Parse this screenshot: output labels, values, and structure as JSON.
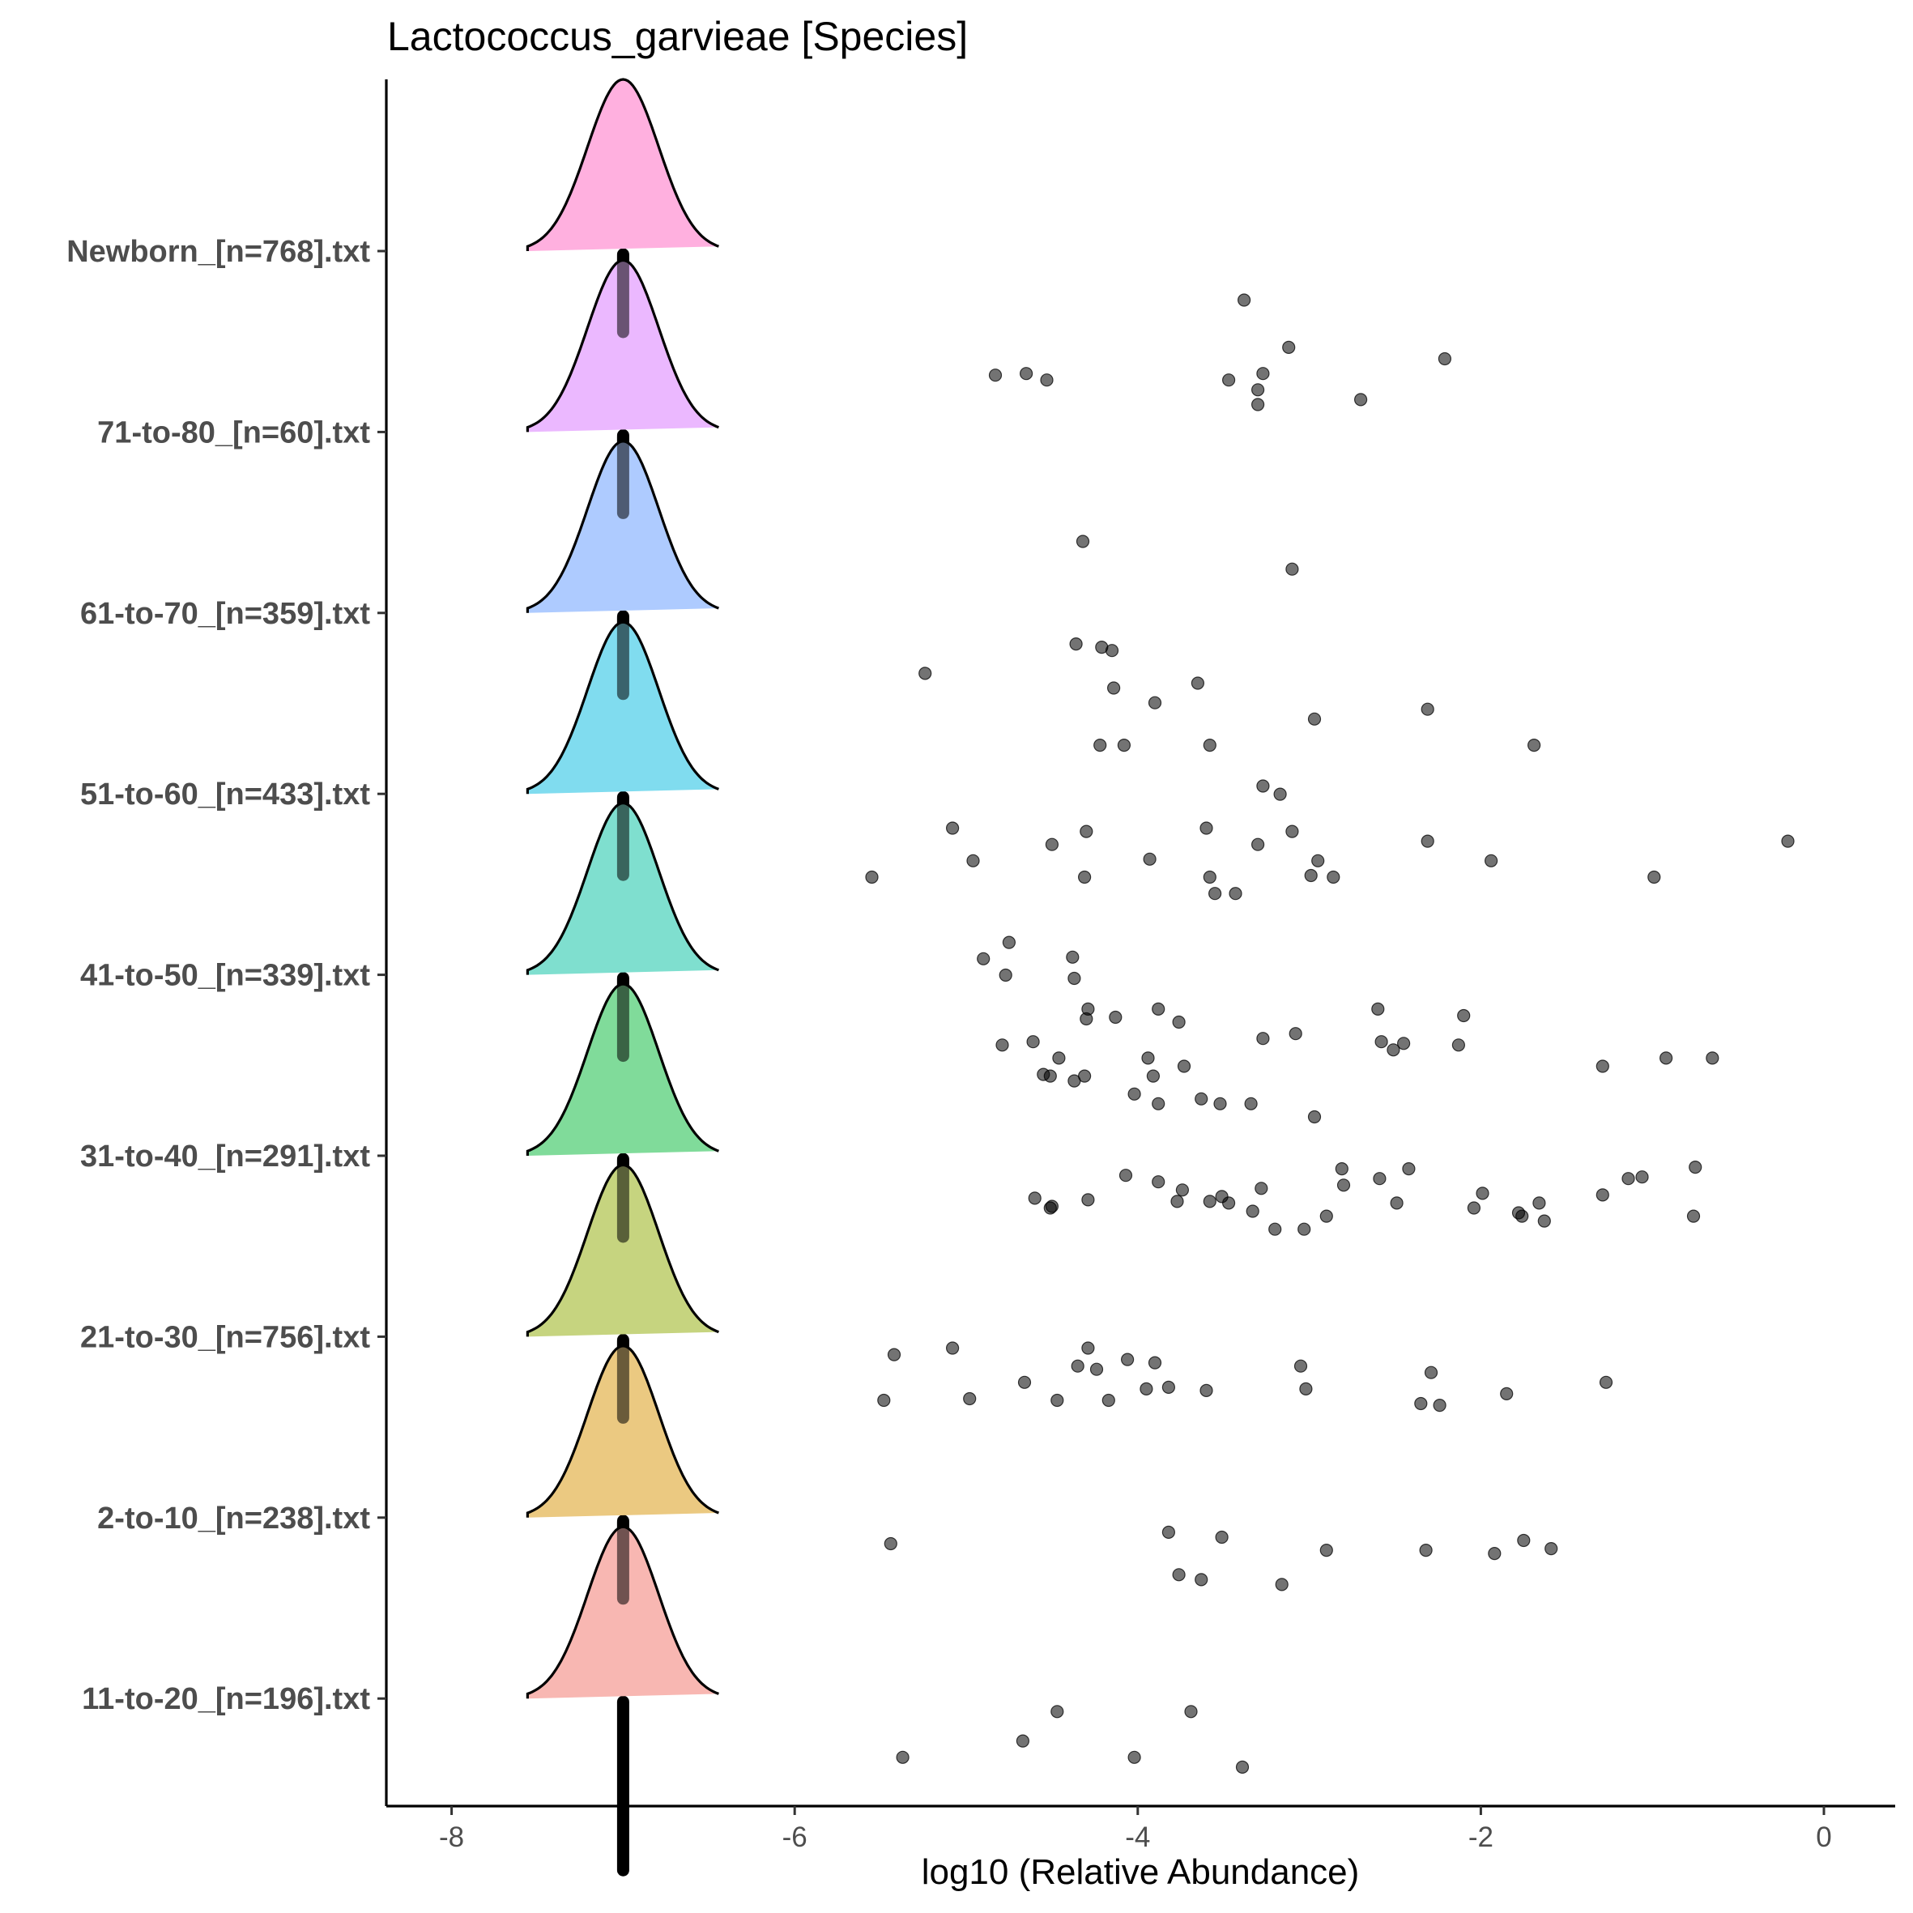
{
  "chart_data": {
    "type": "ridgeline",
    "title": "Lactococcus_garvieae [Species]",
    "xlabel": "log10 (Relative Abundance)",
    "xlim": [
      -8.4,
      0.8
    ],
    "xticks": [
      -8,
      -6,
      -4,
      -2,
      0
    ],
    "xtick_labels": [
      "-8",
      "-6",
      "-4",
      "-2",
      "0"
    ],
    "grid": false,
    "legend": "none",
    "baseline_value": -7,
    "groups": [
      {
        "label": "Newborn_[n=768].txt",
        "color": "#FFB0DF",
        "points": [
          [
            -4.83,
            0.75
          ],
          [
            -4.65,
            0.74
          ],
          [
            -4.53,
            0.78
          ],
          [
            -3.38,
            0.29
          ],
          [
            -3.47,
            0.78
          ],
          [
            -3.3,
            0.84
          ],
          [
            -3.27,
            0.74
          ],
          [
            -3.3,
            0.93
          ],
          [
            -3.12,
            0.58
          ],
          [
            -2.7,
            0.9
          ],
          [
            -2.21,
            0.65
          ]
        ]
      },
      {
        "label": "71-to-80_[n=60].txt",
        "color": "#EBB8FF",
        "points": [
          [
            -4.32,
            0.66
          ],
          [
            -3.1,
            0.83
          ]
        ]
      },
      {
        "label": "61-to-70_[n=359].txt",
        "color": "#AECBFF",
        "points": [
          [
            -5.24,
            0.36
          ],
          [
            -4.36,
            0.18
          ],
          [
            -4.21,
            0.2
          ],
          [
            -4.15,
            0.22
          ],
          [
            -4.14,
            0.45
          ],
          [
            -3.9,
            0.54
          ],
          [
            -3.65,
            0.42
          ],
          [
            -2.97,
            0.64
          ],
          [
            -2.31,
            0.58
          ],
          [
            -1.69,
            0.8
          ],
          [
            -4.22,
            0.8
          ],
          [
            -4.08,
            0.8
          ],
          [
            -3.58,
            0.8
          ],
          [
            -3.27,
            1.05
          ],
          [
            -3.17,
            1.1
          ]
        ]
      },
      {
        "label": "51-to-60_[n=433].txt",
        "color": "#80DCEF",
        "points": [
          [
            -4.75,
            0.9
          ],
          [
            -4.9,
            1.0
          ],
          [
            -4.77,
            1.1
          ],
          [
            -4.38,
            0.99
          ],
          [
            -4.37,
            1.12
          ],
          [
            -5.08,
            0.2
          ],
          [
            -4.3,
            0.22
          ],
          [
            -4.5,
            0.3
          ],
          [
            -3.6,
            0.2
          ],
          [
            -3.3,
            0.3
          ],
          [
            -3.1,
            0.22
          ],
          [
            -2.31,
            0.28
          ],
          [
            -2.95,
            0.4
          ],
          [
            -2.99,
            0.49
          ],
          [
            -3.93,
            0.39
          ],
          [
            -5.55,
            0.5
          ],
          [
            -4.96,
            0.4
          ],
          [
            -4.31,
            0.5
          ],
          [
            -3.58,
            0.5
          ],
          [
            -3.55,
            0.6
          ],
          [
            -3.43,
            0.6
          ],
          [
            -2.86,
            0.5
          ],
          [
            -1.94,
            0.4
          ],
          [
            -0.99,
            0.5
          ],
          [
            -0.21,
            0.28
          ]
        ]
      },
      {
        "label": "41-to-50_[n=339].txt",
        "color": "#7FDFCF",
        "points": [
          [
            -4.02,
            0.72
          ],
          [
            -3.88,
            0.78
          ],
          [
            -3.63,
            0.75
          ],
          [
            -3.52,
            0.78
          ],
          [
            -3.34,
            0.78
          ],
          [
            -2.97,
            0.86
          ],
          [
            -4.29,
            0.2
          ],
          [
            -4.3,
            0.26
          ],
          [
            -3.88,
            0.2
          ],
          [
            -4.13,
            0.25
          ],
          [
            -3.76,
            0.28
          ],
          [
            -2.6,
            0.2
          ],
          [
            -2.1,
            0.24
          ],
          [
            -3.27,
            0.38
          ],
          [
            -3.08,
            0.35
          ],
          [
            -2.58,
            0.4
          ],
          [
            -2.51,
            0.45
          ],
          [
            -2.45,
            0.41
          ],
          [
            -2.13,
            0.42
          ],
          [
            -4.79,
            0.42
          ],
          [
            -4.61,
            0.4
          ],
          [
            -4.46,
            0.5
          ],
          [
            -3.94,
            0.5
          ],
          [
            -3.73,
            0.55
          ],
          [
            -4.55,
            0.6
          ],
          [
            -4.51,
            0.61
          ],
          [
            -4.37,
            0.64
          ],
          [
            -4.31,
            0.61
          ],
          [
            -3.91,
            0.61
          ],
          [
            -1.29,
            0.55
          ],
          [
            -0.92,
            0.5
          ],
          [
            -0.65,
            0.5
          ]
        ]
      },
      {
        "label": "31-to-40_[n=291].txt",
        "color": "#80DB9A",
        "points": [
          [
            -4.07,
            0.11
          ],
          [
            -3.88,
            0.15
          ],
          [
            -3.74,
            0.2
          ],
          [
            -2.81,
            0.07
          ],
          [
            -2.8,
            0.17
          ],
          [
            -2.59,
            0.13
          ],
          [
            -2.42,
            0.07
          ],
          [
            -1.99,
            0.22
          ],
          [
            -1.14,
            0.13
          ],
          [
            -1.06,
            0.12
          ],
          [
            -0.75,
            0.06
          ],
          [
            -4.6,
            0.25
          ],
          [
            -4.5,
            0.3
          ],
          [
            -4.51,
            0.31
          ],
          [
            -4.29,
            0.26
          ],
          [
            -3.77,
            0.27
          ],
          [
            -3.58,
            0.27
          ],
          [
            -3.51,
            0.24
          ],
          [
            -3.47,
            0.28
          ],
          [
            -3.28,
            0.19
          ],
          [
            -3.33,
            0.33
          ],
          [
            -2.49,
            0.28
          ],
          [
            -2.04,
            0.31
          ],
          [
            -1.66,
            0.28
          ],
          [
            -1.29,
            0.23
          ],
          [
            -3.2,
            0.44
          ],
          [
            -3.03,
            0.44
          ],
          [
            -2.9,
            0.36
          ],
          [
            -1.78,
            0.34
          ],
          [
            -1.76,
            0.36
          ],
          [
            -1.63,
            0.39
          ],
          [
            -0.76,
            0.36
          ]
        ]
      },
      {
        "label": "21-to-30_[n=756].txt",
        "color": "#C6D47F",
        "points": [
          [
            -5.42,
            0.1
          ],
          [
            -5.08,
            0.06
          ],
          [
            -4.29,
            0.06
          ],
          [
            -4.06,
            0.13
          ],
          [
            -3.9,
            0.15
          ],
          [
            -4.35,
            0.17
          ],
          [
            -4.24,
            0.19
          ],
          [
            -3.05,
            0.17
          ],
          [
            -2.29,
            0.21
          ],
          [
            -4.66,
            0.27
          ],
          [
            -3.95,
            0.31
          ],
          [
            -3.82,
            0.3
          ],
          [
            -3.6,
            0.32
          ],
          [
            -3.02,
            0.31
          ],
          [
            -1.85,
            0.34
          ],
          [
            -1.27,
            0.27
          ],
          [
            -5.48,
            0.38
          ],
          [
            -4.98,
            0.37
          ],
          [
            -4.47,
            0.38
          ],
          [
            -4.17,
            0.38
          ],
          [
            -2.35,
            0.4
          ],
          [
            -2.24,
            0.41
          ]
        ]
      },
      {
        "label": "2-to-10_[n=238].txt",
        "color": "#EBC981",
        "points": [
          [
            -3.82,
            0.08
          ],
          [
            -3.51,
            0.11
          ],
          [
            -5.44,
            0.15
          ],
          [
            -2.9,
            0.19
          ],
          [
            -2.32,
            0.19
          ],
          [
            -1.92,
            0.21
          ],
          [
            -1.75,
            0.13
          ],
          [
            -1.59,
            0.18
          ],
          [
            -3.76,
            0.34
          ],
          [
            -3.63,
            0.37
          ],
          [
            -3.16,
            0.4
          ]
        ]
      },
      {
        "label": "11-to-20_[n=196].txt",
        "color": "#F8B7B2",
        "points": [
          [
            -4.47,
            0.07
          ],
          [
            -3.69,
            0.07
          ],
          [
            -4.67,
            0.25
          ],
          [
            -5.37,
            0.35
          ],
          [
            -4.02,
            0.35
          ],
          [
            -3.39,
            0.41
          ]
        ]
      }
    ]
  }
}
